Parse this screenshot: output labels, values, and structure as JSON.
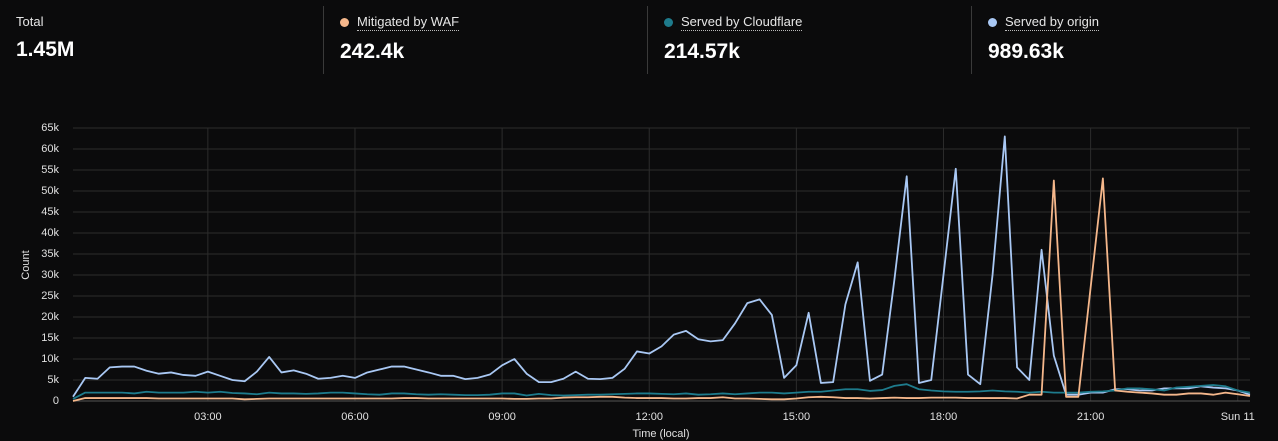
{
  "chart_data": {
    "type": "line",
    "total_label": "Total",
    "total": "1.45M",
    "x_label": "Time (local)",
    "y_label": "Count",
    "xlim": [
      0.25,
      24.25
    ],
    "ylim": [
      0,
      65000
    ],
    "xticks": [
      {
        "value": 3,
        "label": "03:00"
      },
      {
        "value": 6,
        "label": "06:00"
      },
      {
        "value": 9,
        "label": "09:00"
      },
      {
        "value": 12,
        "label": "12:00"
      },
      {
        "value": 15,
        "label": "15:00"
      },
      {
        "value": 18,
        "label": "18:00"
      },
      {
        "value": 21,
        "label": "21:00"
      },
      {
        "value": 24,
        "label": "Sun 11"
      }
    ],
    "yticks": [
      0,
      {
        "value": 5000,
        "label": "5k"
      },
      {
        "value": 10000,
        "label": "10k"
      },
      {
        "value": 15000,
        "label": "15k"
      },
      {
        "value": 20000,
        "label": "20k"
      },
      {
        "value": 25000,
        "label": "25k"
      },
      {
        "value": 30000,
        "label": "30k"
      },
      {
        "value": 35000,
        "label": "35k"
      },
      {
        "value": 40000,
        "label": "40k"
      },
      {
        "value": 45000,
        "label": "45k"
      },
      {
        "value": 50000,
        "label": "50k"
      },
      {
        "value": 55000,
        "label": "55k"
      },
      {
        "value": 60000,
        "label": "60k"
      },
      {
        "value": 65000,
        "label": "65k"
      }
    ],
    "grid": true,
    "x": [
      0.25,
      0.5,
      0.75,
      1,
      1.25,
      1.5,
      1.75,
      2,
      2.25,
      2.5,
      2.75,
      3,
      3.25,
      3.5,
      3.75,
      4,
      4.25,
      4.5,
      4.75,
      5,
      5.25,
      5.5,
      5.75,
      6,
      6.25,
      6.5,
      6.75,
      7,
      7.25,
      7.5,
      7.75,
      8,
      8.25,
      8.5,
      8.75,
      9,
      9.25,
      9.5,
      9.75,
      10,
      10.25,
      10.5,
      10.75,
      11,
      11.25,
      11.5,
      11.75,
      12,
      12.25,
      12.5,
      12.75,
      13,
      13.25,
      13.5,
      13.75,
      14,
      14.25,
      14.5,
      14.75,
      15,
      15.25,
      15.5,
      15.75,
      16,
      16.25,
      16.5,
      16.75,
      17,
      17.25,
      17.5,
      17.75,
      18,
      18.25,
      18.5,
      18.75,
      19,
      19.25,
      19.5,
      19.75,
      20,
      20.25,
      20.5,
      20.75,
      21,
      21.25,
      21.5,
      21.75,
      22,
      22.25,
      22.5,
      22.75,
      23,
      23.25,
      23.5,
      23.75,
      24,
      24.25
    ],
    "series": [
      {
        "name": "Mitigated by WAF",
        "total": "242.4k",
        "color": "#f5b78b",
        "values": [
          0,
          700,
          700,
          700,
          700,
          700,
          700,
          600,
          600,
          600,
          600,
          600,
          600,
          600,
          400,
          500,
          600,
          600,
          600,
          600,
          600,
          600,
          600,
          600,
          600,
          600,
          600,
          700,
          700,
          600,
          600,
          600,
          600,
          600,
          600,
          600,
          500,
          500,
          600,
          600,
          800,
          900,
          900,
          1000,
          1000,
          800,
          700,
          700,
          700,
          600,
          600,
          700,
          700,
          900,
          600,
          600,
          500,
          400,
          400,
          600,
          900,
          1000,
          900,
          700,
          700,
          600,
          700,
          800,
          700,
          700,
          800,
          800,
          800,
          700,
          700,
          700,
          700,
          600,
          1500,
          1500,
          52500,
          1000,
          1000,
          27000,
          53000,
          2500,
          2200,
          2000,
          1800,
          1500,
          1500,
          1800,
          1800,
          1500,
          2000,
          1600,
          1200
        ]
      },
      {
        "name": "Served by Cloudflare",
        "total": "214.57k",
        "color": "#1e7b8c",
        "values": [
          500,
          2000,
          2000,
          2000,
          2000,
          1800,
          2200,
          2000,
          2000,
          2000,
          2200,
          2000,
          2200,
          1900,
          1800,
          1600,
          2000,
          1800,
          1800,
          1700,
          1800,
          2000,
          2000,
          1800,
          1600,
          1500,
          1800,
          1800,
          1600,
          1500,
          1600,
          1500,
          1400,
          1400,
          1500,
          1800,
          1800,
          1300,
          1700,
          1400,
          1300,
          1400,
          1500,
          1500,
          1600,
          1700,
          1800,
          1800,
          1700,
          1600,
          1800,
          1500,
          1600,
          1800,
          1600,
          1800,
          2000,
          2000,
          1800,
          2000,
          2200,
          2200,
          2500,
          2800,
          2800,
          2400,
          2600,
          3600,
          4000,
          2800,
          2500,
          2300,
          2200,
          2200,
          2300,
          2500,
          2300,
          2200,
          2000,
          2200,
          2000,
          2000,
          2000,
          2200,
          2300,
          2500,
          3000,
          3000,
          2800,
          2500,
          3200,
          3400,
          3600,
          3800,
          3500,
          2500,
          2000
        ]
      },
      {
        "name": "Served by origin",
        "total": "989.63k",
        "color": "#a9c8f4",
        "values": [
          1000,
          5500,
          5300,
          8000,
          8200,
          8200,
          7200,
          6500,
          6800,
          6200,
          6000,
          7000,
          6000,
          5000,
          4700,
          7000,
          10500,
          6800,
          7300,
          6500,
          5300,
          5500,
          6000,
          5500,
          6800,
          7500,
          8200,
          8200,
          7500,
          6800,
          6000,
          6000,
          5200,
          5500,
          6300,
          8500,
          10000,
          6500,
          4500,
          4500,
          5300,
          7000,
          5300,
          5200,
          5500,
          7700,
          11800,
          11300,
          13000,
          15800,
          16700,
          14700,
          14200,
          14500,
          18500,
          23300,
          24200,
          20500,
          5500,
          8500,
          21000,
          4300,
          4500,
          23000,
          33000,
          4800,
          6300,
          29000,
          53500,
          4300,
          5000,
          30000,
          55300,
          6300,
          4000,
          30000,
          63000,
          8000,
          5000,
          36000,
          10800,
          1500,
          1500,
          2000,
          2000,
          2800,
          2800,
          2500,
          2500,
          3000,
          3000,
          3000,
          3500,
          3200,
          3000,
          2500,
          1500
        ]
      }
    ]
  }
}
